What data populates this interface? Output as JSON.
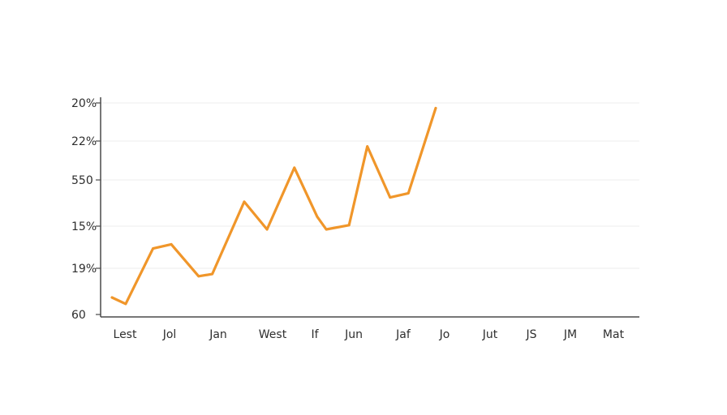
{
  "chart_data": {
    "type": "line",
    "title": "",
    "xlabel": "",
    "ylabel": "",
    "categories": [
      "Lest",
      "Jol",
      "Jan",
      "West",
      "If",
      "Jun",
      "Jaf",
      "Jo",
      "Jut",
      "JS",
      "JM",
      "Mat"
    ],
    "y_tick_labels": [
      "20%",
      "22%",
      "550",
      "15%",
      "19%",
      "60"
    ],
    "grid": true,
    "legend": "none",
    "series": [
      {
        "color": "#f0962a",
        "points": [
          {
            "x": 0.0,
            "y": 0.4
          },
          {
            "x": 0.3,
            "y": 0.25
          },
          {
            "x": 0.9,
            "y": 1.55
          },
          {
            "x": 1.3,
            "y": 1.65
          },
          {
            "x": 1.9,
            "y": 0.9
          },
          {
            "x": 2.2,
            "y": 0.95
          },
          {
            "x": 2.9,
            "y": 2.65
          },
          {
            "x": 3.4,
            "y": 2.0
          },
          {
            "x": 4.0,
            "y": 3.45
          },
          {
            "x": 4.5,
            "y": 2.3
          },
          {
            "x": 4.7,
            "y": 2.0
          },
          {
            "x": 5.2,
            "y": 2.1
          },
          {
            "x": 5.6,
            "y": 3.95
          },
          {
            "x": 6.1,
            "y": 2.75
          },
          {
            "x": 6.5,
            "y": 2.85
          },
          {
            "x": 7.1,
            "y": 4.85
          }
        ]
      }
    ]
  },
  "colors": {
    "line": "#f0962a",
    "axis": "#4a4a4a",
    "grid": "#ededed",
    "text": "#2e2e2e"
  }
}
